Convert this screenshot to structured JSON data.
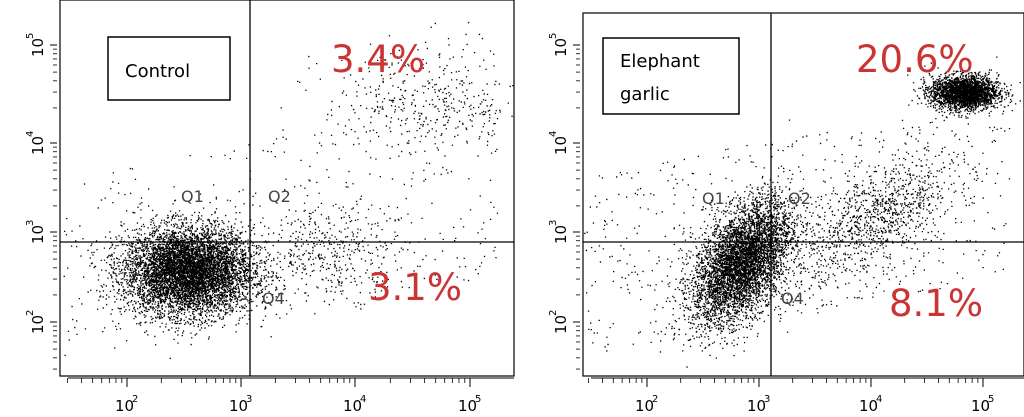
{
  "chart_data": [
    {
      "type": "scatter",
      "title": "Control",
      "xlim": [
        10,
        100000
      ],
      "ylim": [
        10,
        100000
      ],
      "xscale": "log",
      "yscale": "log",
      "x_ticks": [
        "10",
        "3",
        "10",
        "3",
        "10",
        "4",
        "10",
        "5"
      ],
      "x_tick_labels": [
        {
          "base": "10",
          "exp": "2"
        },
        {
          "base": "10",
          "exp": "3"
        },
        {
          "base": "10",
          "exp": "4"
        },
        {
          "base": "10",
          "exp": "5"
        }
      ],
      "y_tick_labels": [
        {
          "base": "10",
          "exp": "2"
        },
        {
          "base": "10",
          "exp": "3"
        },
        {
          "base": "10",
          "exp": "4"
        },
        {
          "base": "10",
          "exp": "5"
        }
      ],
      "gates": {
        "x": 1300,
        "y": 750
      },
      "quadrant_labels": {
        "q1": "Q1",
        "q2": "Q2",
        "q4": "Q4"
      },
      "annotations": {
        "upper_right": "3.4%",
        "lower_right": "3.1%"
      },
      "populations": [
        {
          "label": "main",
          "center": [
            130,
            140
          ],
          "spread": [
            0.28,
            0.26
          ],
          "share": 0.92
        },
        {
          "label": "upper_right",
          "center": [
            15000,
            15000
          ],
          "spread": [
            0.45,
            0.35
          ],
          "share": 0.034
        },
        {
          "label": "lower_right",
          "center": [
            2500,
            250
          ],
          "spread": [
            0.3,
            0.28
          ],
          "share": 0.031
        }
      ]
    },
    {
      "type": "scatter",
      "title": "Elephant garlic",
      "xlim": [
        10,
        100000
      ],
      "ylim": [
        10,
        100000
      ],
      "xscale": "log",
      "yscale": "log",
      "x_tick_labels": [
        {
          "base": "10",
          "exp": "2"
        },
        {
          "base": "10",
          "exp": "3"
        },
        {
          "base": "10",
          "exp": "4"
        },
        {
          "base": "10",
          "exp": "5"
        }
      ],
      "y_tick_labels": [
        {
          "base": "10",
          "exp": "2"
        },
        {
          "base": "10",
          "exp": "3"
        },
        {
          "base": "10",
          "exp": "4"
        },
        {
          "base": "10",
          "exp": "5"
        }
      ],
      "gates": {
        "x": 1000,
        "y": 750
      },
      "quadrant_labels": {
        "q1": "Q1",
        "q2": "Q2",
        "q4": "Q4"
      },
      "annotations": {
        "upper_right": "20.6%",
        "lower_right": "8.1%"
      },
      "populations": [
        {
          "label": "main",
          "center": [
            260,
            180
          ],
          "spread": [
            0.22,
            0.32
          ],
          "share": 0.7
        },
        {
          "label": "upper_right",
          "center": [
            25000,
            20000
          ],
          "spread": [
            0.15,
            0.1
          ],
          "share": 0.206
        },
        {
          "label": "lower_right",
          "center": [
            4000,
            600
          ],
          "spread": [
            0.35,
            0.3
          ],
          "share": 0.081
        }
      ]
    }
  ],
  "colors": {
    "percent": "#cc3333",
    "axis": "#000000",
    "dots": "#000000",
    "quadrant_label": "#444444"
  }
}
